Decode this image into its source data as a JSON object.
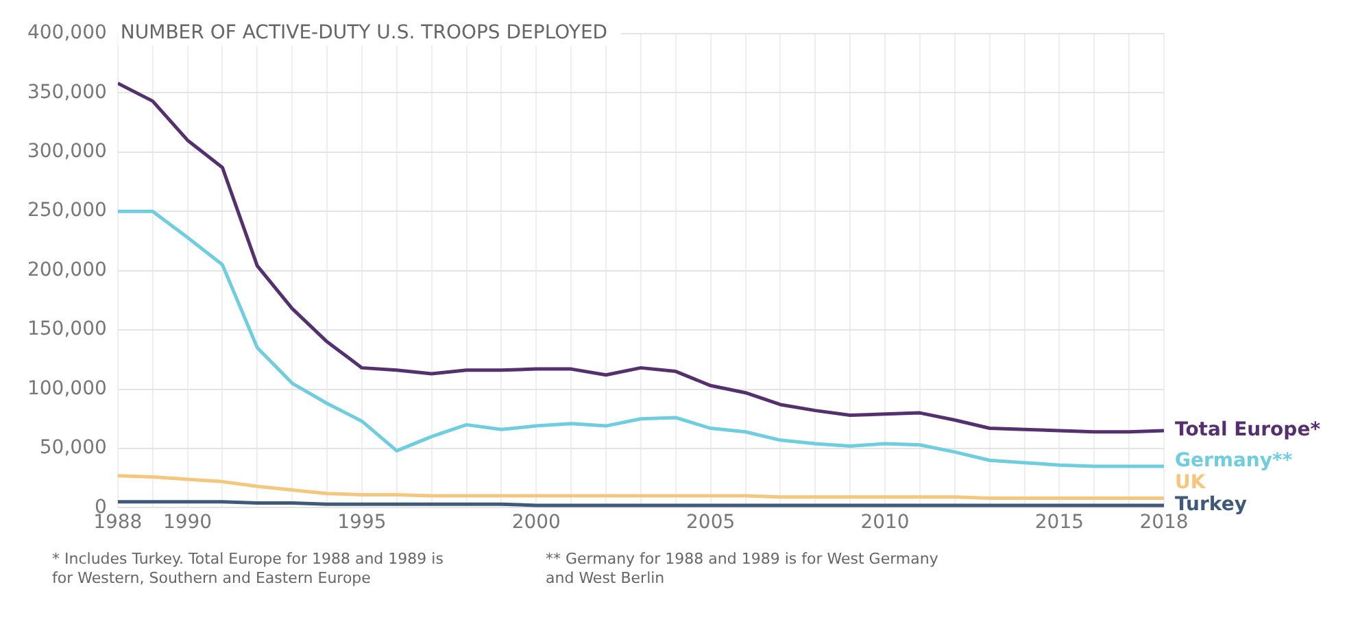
{
  "chart_data": {
    "type": "line",
    "title": "NUMBER OF ACTIVE-DUTY U.S. TROOPS DEPLOYED",
    "x": [
      1988,
      1989,
      1990,
      1991,
      1992,
      1993,
      1994,
      1995,
      1996,
      1997,
      1998,
      1999,
      2000,
      2001,
      2002,
      2003,
      2004,
      2005,
      2006,
      2007,
      2008,
      2009,
      2010,
      2011,
      2012,
      2013,
      2014,
      2015,
      2016,
      2017,
      2018
    ],
    "series": [
      {
        "name": "Total Europe*",
        "color": "#54306e",
        "values": [
          358000,
          343000,
          310000,
          287000,
          204000,
          168000,
          140000,
          118000,
          116000,
          113000,
          116000,
          116000,
          117000,
          117000,
          112000,
          118000,
          115000,
          103000,
          97000,
          87000,
          82000,
          78000,
          79000,
          80000,
          74000,
          67000,
          66000,
          65000,
          64000,
          64000,
          65000
        ]
      },
      {
        "name": "Germany**",
        "color": "#6fcde0",
        "values": [
          250000,
          250000,
          228000,
          205000,
          135000,
          105000,
          88000,
          73000,
          48000,
          60000,
          70000,
          66000,
          69000,
          71000,
          69000,
          75000,
          76000,
          67000,
          64000,
          57000,
          54000,
          52000,
          54000,
          53000,
          47000,
          40000,
          38000,
          36000,
          35000,
          35000,
          35000
        ]
      },
      {
        "name": "UK",
        "color": "#f5c77e",
        "values": [
          27000,
          26000,
          24000,
          22000,
          18000,
          15000,
          12000,
          11000,
          11000,
          10000,
          10000,
          10000,
          10000,
          10000,
          10000,
          10000,
          10000,
          10000,
          10000,
          9000,
          9000,
          9000,
          9000,
          9000,
          9000,
          8000,
          8000,
          8000,
          8000,
          8000,
          8000
        ]
      },
      {
        "name": "Turkey",
        "color": "#3e5a78",
        "values": [
          5000,
          5000,
          5000,
          5000,
          4000,
          4000,
          3000,
          3000,
          3000,
          3000,
          3000,
          3000,
          2000,
          2000,
          2000,
          2000,
          2000,
          2000,
          2000,
          2000,
          2000,
          2000,
          2000,
          2000,
          2000,
          2000,
          2000,
          2000,
          2000,
          2000,
          2000
        ]
      }
    ],
    "xlim": [
      1988,
      2018
    ],
    "xticks": [
      {
        "value": 1988,
        "label": "1988"
      },
      {
        "value": 1989,
        "label": null
      },
      {
        "value": 1990,
        "label": "1990"
      },
      {
        "value": 1991,
        "label": null
      },
      {
        "value": 1992,
        "label": null
      },
      {
        "value": 1993,
        "label": null
      },
      {
        "value": 1994,
        "label": null
      },
      {
        "value": 1995,
        "label": "1995"
      },
      {
        "value": 1996,
        "label": null
      },
      {
        "value": 1997,
        "label": null
      },
      {
        "value": 1998,
        "label": null
      },
      {
        "value": 1999,
        "label": null
      },
      {
        "value": 2000,
        "label": "2000"
      },
      {
        "value": 2001,
        "label": null
      },
      {
        "value": 2002,
        "label": null
      },
      {
        "value": 2003,
        "label": null
      },
      {
        "value": 2004,
        "label": null
      },
      {
        "value": 2005,
        "label": "2005"
      },
      {
        "value": 2006,
        "label": null
      },
      {
        "value": 2007,
        "label": null
      },
      {
        "value": 2008,
        "label": null
      },
      {
        "value": 2009,
        "label": null
      },
      {
        "value": 2010,
        "label": "2010"
      },
      {
        "value": 2011,
        "label": null
      },
      {
        "value": 2012,
        "label": null
      },
      {
        "value": 2013,
        "label": null
      },
      {
        "value": 2014,
        "label": null
      },
      {
        "value": 2015,
        "label": "2015"
      },
      {
        "value": 2016,
        "label": null
      },
      {
        "value": 2017,
        "label": null
      },
      {
        "value": 2018,
        "label": "2018"
      }
    ],
    "ylim": [
      0,
      400000
    ],
    "yticks": [
      {
        "value": 0,
        "label": "0"
      },
      {
        "value": 50000,
        "label": "50,000"
      },
      {
        "value": 100000,
        "label": "100,000"
      },
      {
        "value": 150000,
        "label": "150,000"
      },
      {
        "value": 200000,
        "label": "200,000"
      },
      {
        "value": 250000,
        "label": "250,000"
      },
      {
        "value": 300000,
        "label": "300,000"
      },
      {
        "value": 350000,
        "label": "350,000"
      },
      {
        "value": 400000,
        "label": "400,000"
      }
    ],
    "grid": true,
    "legend": false,
    "marker": "none",
    "line_style": "solid",
    "annotations": [
      "* Includes Turkey. Total Europe for 1988 and 1989 is for Western, Southern and Eastern Europe",
      "** Germany for 1988 and 1989 is for West Germany and West Berlin"
    ]
  }
}
